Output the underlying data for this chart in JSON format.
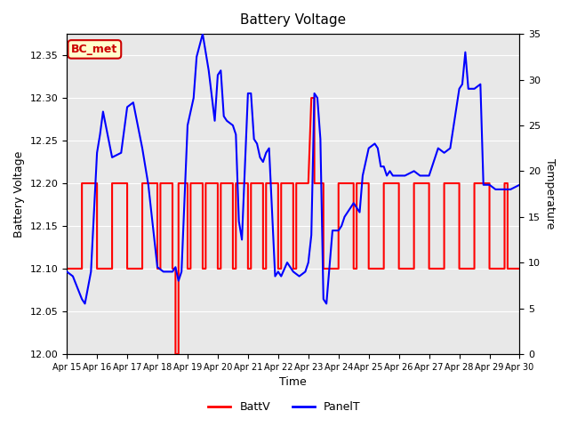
{
  "title": "Battery Voltage",
  "xlabel": "Time",
  "ylabel_left": "Battery Voltage",
  "ylabel_right": "Temperature",
  "ylim_left": [
    12.0,
    12.375
  ],
  "ylim_right": [
    0,
    35
  ],
  "yticks_left": [
    12.0,
    12.05,
    12.1,
    12.15,
    12.2,
    12.25,
    12.3,
    12.35
  ],
  "yticks_right": [
    0,
    5,
    10,
    15,
    20,
    25,
    30,
    35
  ],
  "xtick_labels": [
    "Apr 15",
    "Apr 16",
    "Apr 17",
    "Apr 18",
    "Apr 19",
    "Apr 20",
    "Apr 21",
    "Apr 22",
    "Apr 23",
    "Apr 24",
    "Apr 25",
    "Apr 26",
    "Apr 27",
    "Apr 28",
    "Apr 29",
    "Apr 30"
  ],
  "background_color": "#ffffff",
  "plot_bg_color": "#e8e8e8",
  "annotation_text": "BC_met",
  "annotation_bg": "#ffffcc",
  "annotation_border": "#cc0000",
  "batt_color": "#ff0000",
  "panel_color": "#0000ff",
  "legend_batt": "BattV",
  "legend_panel": "PanelT",
  "batt_data": [
    [
      0,
      12.1
    ],
    [
      0.5,
      12.1
    ],
    [
      0.5,
      12.2
    ],
    [
      1.0,
      12.2
    ],
    [
      1.0,
      12.1
    ],
    [
      1.5,
      12.1
    ],
    [
      1.5,
      12.2
    ],
    [
      2.0,
      12.2
    ],
    [
      2.0,
      12.1
    ],
    [
      2.5,
      12.1
    ],
    [
      2.5,
      12.2
    ],
    [
      3.0,
      12.2
    ],
    [
      3.0,
      12.1
    ],
    [
      3.1,
      12.1
    ],
    [
      3.1,
      12.2
    ],
    [
      3.5,
      12.2
    ],
    [
      3.5,
      12.1
    ],
    [
      3.6,
      12.1
    ],
    [
      3.6,
      12.0
    ],
    [
      3.7,
      12.0
    ],
    [
      3.7,
      12.2
    ],
    [
      4.0,
      12.2
    ],
    [
      4.0,
      12.1
    ],
    [
      4.1,
      12.1
    ],
    [
      4.1,
      12.2
    ],
    [
      4.5,
      12.2
    ],
    [
      4.5,
      12.1
    ],
    [
      4.6,
      12.1
    ],
    [
      4.6,
      12.2
    ],
    [
      5.0,
      12.2
    ],
    [
      5.0,
      12.1
    ],
    [
      5.1,
      12.1
    ],
    [
      5.1,
      12.2
    ],
    [
      5.5,
      12.2
    ],
    [
      5.5,
      12.1
    ],
    [
      5.6,
      12.1
    ],
    [
      5.6,
      12.2
    ],
    [
      6.0,
      12.2
    ],
    [
      6.0,
      12.1
    ],
    [
      6.1,
      12.1
    ],
    [
      6.1,
      12.2
    ],
    [
      6.5,
      12.2
    ],
    [
      6.5,
      12.1
    ],
    [
      6.6,
      12.1
    ],
    [
      6.6,
      12.2
    ],
    [
      7.0,
      12.2
    ],
    [
      7.0,
      12.1
    ],
    [
      7.1,
      12.1
    ],
    [
      7.1,
      12.2
    ],
    [
      7.5,
      12.2
    ],
    [
      7.5,
      12.1
    ],
    [
      7.6,
      12.1
    ],
    [
      7.6,
      12.2
    ],
    [
      8.0,
      12.2
    ],
    [
      8.1,
      12.3
    ],
    [
      8.2,
      12.3
    ],
    [
      8.2,
      12.2
    ],
    [
      8.5,
      12.2
    ],
    [
      8.5,
      12.1
    ],
    [
      9.0,
      12.1
    ],
    [
      9.0,
      12.2
    ],
    [
      9.5,
      12.2
    ],
    [
      9.5,
      12.1
    ],
    [
      9.6,
      12.1
    ],
    [
      9.6,
      12.2
    ],
    [
      10.0,
      12.2
    ],
    [
      10.0,
      12.1
    ],
    [
      10.1,
      12.1
    ],
    [
      10.5,
      12.1
    ],
    [
      10.5,
      12.2
    ],
    [
      11.0,
      12.2
    ],
    [
      11.0,
      12.1
    ],
    [
      11.5,
      12.1
    ],
    [
      11.5,
      12.2
    ],
    [
      12.0,
      12.2
    ],
    [
      12.0,
      12.1
    ],
    [
      12.5,
      12.1
    ],
    [
      12.5,
      12.2
    ],
    [
      13.0,
      12.2
    ],
    [
      13.0,
      12.1
    ],
    [
      13.5,
      12.1
    ],
    [
      13.5,
      12.2
    ],
    [
      14.0,
      12.2
    ],
    [
      14.0,
      12.1
    ],
    [
      14.5,
      12.1
    ],
    [
      14.5,
      12.2
    ],
    [
      14.6,
      12.2
    ],
    [
      14.6,
      12.1
    ],
    [
      15.0,
      12.1
    ]
  ],
  "panel_data": [
    [
      0,
      9.0
    ],
    [
      0.2,
      8.5
    ],
    [
      0.5,
      6.0
    ],
    [
      0.6,
      5.5
    ],
    [
      0.8,
      9.0
    ],
    [
      1.0,
      22.0
    ],
    [
      1.1,
      24.0
    ],
    [
      1.2,
      26.5
    ],
    [
      1.5,
      21.5
    ],
    [
      1.8,
      22.0
    ],
    [
      2.0,
      27.0
    ],
    [
      2.2,
      27.5
    ],
    [
      2.5,
      22.5
    ],
    [
      2.7,
      18.5
    ],
    [
      3.0,
      9.5
    ],
    [
      3.2,
      9.0
    ],
    [
      3.5,
      9.0
    ],
    [
      3.6,
      9.5
    ],
    [
      3.7,
      8.0
    ],
    [
      3.8,
      9.0
    ],
    [
      4.0,
      25.0
    ],
    [
      4.2,
      28.0
    ],
    [
      4.3,
      32.5
    ],
    [
      4.5,
      35.0
    ],
    [
      4.6,
      33.0
    ],
    [
      4.7,
      31.0
    ],
    [
      4.9,
      25.5
    ],
    [
      5.0,
      30.5
    ],
    [
      5.1,
      31.0
    ],
    [
      5.2,
      26.0
    ],
    [
      5.3,
      25.5
    ],
    [
      5.5,
      25.0
    ],
    [
      5.6,
      24.0
    ],
    [
      5.7,
      14.5
    ],
    [
      5.8,
      12.5
    ],
    [
      6.0,
      28.5
    ],
    [
      6.1,
      28.5
    ],
    [
      6.2,
      23.5
    ],
    [
      6.3,
      23.0
    ],
    [
      6.4,
      21.5
    ],
    [
      6.5,
      21.0
    ],
    [
      6.6,
      22.0
    ],
    [
      6.7,
      22.5
    ],
    [
      6.9,
      8.5
    ],
    [
      7.0,
      9.0
    ],
    [
      7.1,
      8.5
    ],
    [
      7.3,
      10.0
    ],
    [
      7.5,
      9.0
    ],
    [
      7.7,
      8.5
    ],
    [
      7.9,
      9.0
    ],
    [
      8.0,
      10.0
    ],
    [
      8.1,
      13.0
    ],
    [
      8.2,
      28.5
    ],
    [
      8.3,
      28.0
    ],
    [
      8.4,
      23.5
    ],
    [
      8.5,
      6.0
    ],
    [
      8.6,
      5.5
    ],
    [
      8.7,
      9.5
    ],
    [
      8.8,
      13.5
    ],
    [
      9.0,
      13.5
    ],
    [
      9.1,
      14.0
    ],
    [
      9.2,
      15.0
    ],
    [
      9.3,
      15.5
    ],
    [
      9.5,
      16.5
    ],
    [
      9.7,
      15.5
    ],
    [
      9.8,
      19.5
    ],
    [
      10.0,
      22.5
    ],
    [
      10.2,
      23.0
    ],
    [
      10.3,
      22.5
    ],
    [
      10.4,
      20.5
    ],
    [
      10.5,
      20.5
    ],
    [
      10.6,
      19.5
    ],
    [
      10.7,
      20.0
    ],
    [
      10.8,
      19.5
    ],
    [
      11.0,
      19.5
    ],
    [
      11.2,
      19.5
    ],
    [
      11.5,
      20.0
    ],
    [
      11.7,
      19.5
    ],
    [
      12.0,
      19.5
    ],
    [
      12.3,
      22.5
    ],
    [
      12.5,
      22.0
    ],
    [
      12.7,
      22.5
    ],
    [
      13.0,
      29.0
    ],
    [
      13.1,
      29.5
    ],
    [
      13.2,
      33.0
    ],
    [
      13.3,
      29.0
    ],
    [
      13.5,
      29.0
    ],
    [
      13.7,
      29.5
    ],
    [
      13.8,
      18.5
    ],
    [
      14.0,
      18.5
    ],
    [
      14.2,
      18.0
    ],
    [
      14.5,
      18.0
    ],
    [
      14.7,
      18.0
    ],
    [
      15.0,
      18.5
    ]
  ]
}
